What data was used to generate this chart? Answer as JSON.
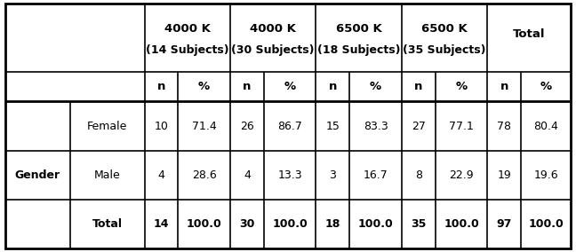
{
  "col_groups": [
    {
      "label": "4000 K",
      "sub": "(14 Subjects)"
    },
    {
      "label": "4000 K",
      "sub": "(30 Subjects)"
    },
    {
      "label": "6500 K",
      "sub": "(18 Subjects)"
    },
    {
      "label": "6500 K",
      "sub": "(35 Subjects)"
    },
    {
      "label": "Total",
      "sub": ""
    }
  ],
  "row_group_label": "Gender",
  "rows": [
    {
      "label": "Female",
      "bold": false,
      "values": [
        "10",
        "71.4",
        "26",
        "86.7",
        "15",
        "83.3",
        "27",
        "77.1",
        "78",
        "80.4"
      ]
    },
    {
      "label": "Male",
      "bold": false,
      "values": [
        "4",
        "28.6",
        "4",
        "13.3",
        "3",
        "16.7",
        "8",
        "22.9",
        "19",
        "19.6"
      ]
    },
    {
      "label": "Total",
      "bold": true,
      "values": [
        "14",
        "100.0",
        "30",
        "100.0",
        "18",
        "100.0",
        "35",
        "100.0",
        "97",
        "100.0"
      ]
    }
  ],
  "bg_color": "#ffffff",
  "border_color": "#000000",
  "lw_outer": 2.0,
  "lw_inner": 1.2,
  "font_size": 9.0,
  "header_font_size": 9.5,
  "figw": 6.48,
  "figh": 2.84,
  "dpi": 100
}
